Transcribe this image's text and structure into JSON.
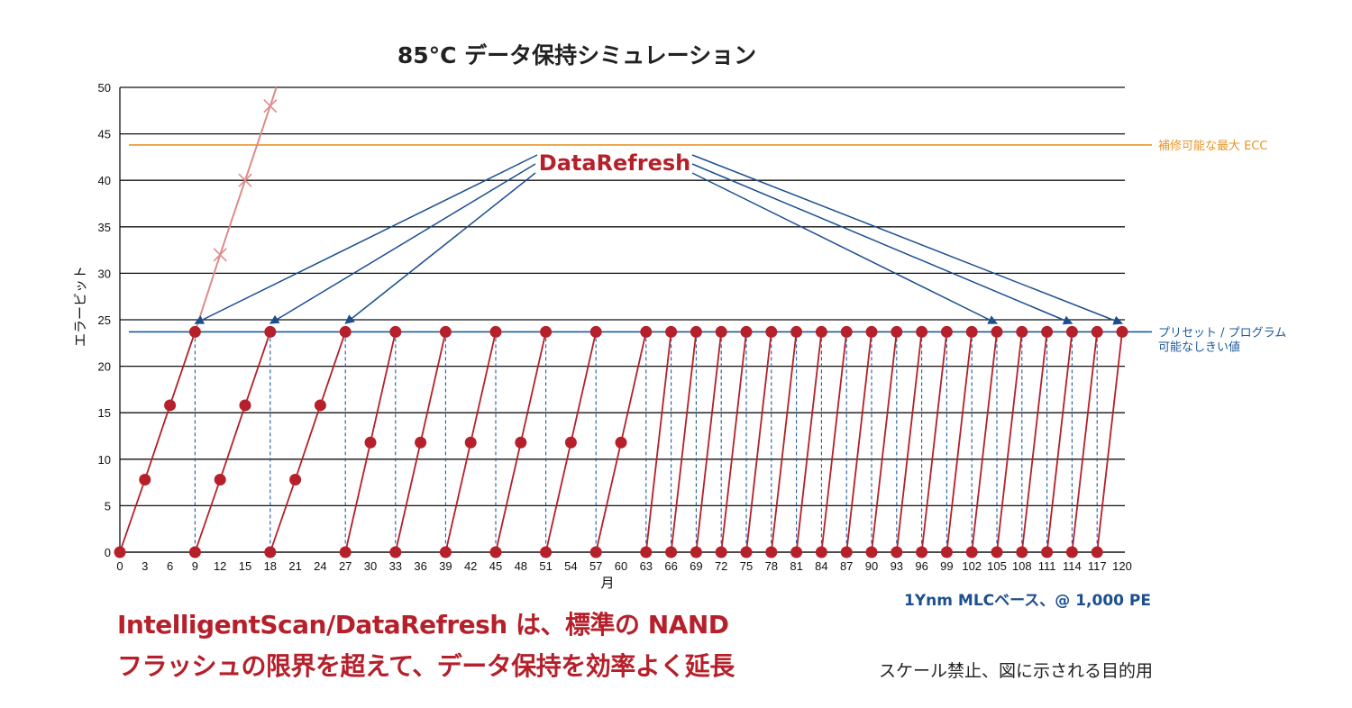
{
  "headline": {
    "line1": "IntelligentScan/DataRefresh は、標準の NAND",
    "line2": "フラッシュの限界を超えて、データ保持を効率よく延長"
  },
  "disclaimer": "スケール禁止、図に示される目的用",
  "chart_data": {
    "type": "line",
    "title": "85°C データ保持シミュレーション",
    "xlabel": "月",
    "ylabel": "エラービット",
    "xlim": [
      0,
      120
    ],
    "ylim": [
      0,
      50
    ],
    "x_ticks": [
      0,
      3,
      6,
      9,
      12,
      15,
      18,
      21,
      24,
      27,
      30,
      33,
      36,
      39,
      42,
      45,
      48,
      51,
      54,
      57,
      60,
      63,
      66,
      69,
      72,
      75,
      78,
      81,
      84,
      87,
      90,
      93,
      96,
      99,
      102,
      105,
      108,
      111,
      114,
      117,
      120
    ],
    "y_ticks": [
      0,
      5,
      10,
      15,
      20,
      25,
      30,
      35,
      40,
      45,
      50
    ],
    "grid": true,
    "refresh_label": "DataRefresh",
    "note": "1Ynm MLCベース、@ 1,000 PE",
    "thresholds": [
      {
        "name": "補修可能な最大 ECC",
        "value": 43.8,
        "color": "#e8962a"
      },
      {
        "name": "プリセット / プログラム",
        "name2": "可能なしきい値",
        "value": 23.7,
        "color": "#1c5a9a"
      }
    ],
    "series": [
      {
        "role": "baseline",
        "color": "#e08a8a",
        "points": [
          [
            9,
            23.7
          ],
          [
            12,
            32
          ],
          [
            15,
            40
          ],
          [
            18,
            48
          ]
        ]
      },
      {
        "role": "refresh",
        "color": "#b5202a",
        "points": [
          [
            0,
            0
          ],
          [
            3,
            7.8
          ],
          [
            6,
            15.8
          ],
          [
            9,
            23.7
          ]
        ]
      },
      {
        "role": "refresh",
        "color": "#b5202a",
        "points": [
          [
            9,
            0
          ],
          [
            12,
            7.8
          ],
          [
            15,
            15.8
          ],
          [
            18,
            23.7
          ]
        ]
      },
      {
        "role": "refresh",
        "color": "#b5202a",
        "points": [
          [
            18,
            0
          ],
          [
            21,
            7.8
          ],
          [
            24,
            15.8
          ],
          [
            27,
            23.7
          ]
        ]
      },
      {
        "role": "refresh",
        "color": "#b5202a",
        "points": [
          [
            27,
            0
          ],
          [
            30,
            11.8
          ],
          [
            33,
            23.7
          ]
        ]
      },
      {
        "role": "refresh",
        "color": "#b5202a",
        "points": [
          [
            33,
            0
          ],
          [
            36,
            11.8
          ],
          [
            39,
            23.7
          ]
        ]
      },
      {
        "role": "refresh",
        "color": "#b5202a",
        "points": [
          [
            39,
            0
          ],
          [
            42,
            11.8
          ],
          [
            45,
            23.7
          ]
        ]
      },
      {
        "role": "refresh",
        "color": "#b5202a",
        "points": [
          [
            45,
            0
          ],
          [
            48,
            11.8
          ],
          [
            51,
            23.7
          ]
        ]
      },
      {
        "role": "refresh",
        "color": "#b5202a",
        "points": [
          [
            51,
            0
          ],
          [
            54,
            11.8
          ],
          [
            57,
            23.7
          ]
        ]
      },
      {
        "role": "refresh",
        "color": "#b5202a",
        "points": [
          [
            57,
            0
          ],
          [
            60,
            11.8
          ],
          [
            63,
            23.7
          ]
        ]
      },
      {
        "role": "refresh",
        "color": "#b5202a",
        "points": [
          [
            63,
            0
          ],
          [
            66,
            23.7
          ]
        ]
      },
      {
        "role": "refresh",
        "color": "#b5202a",
        "points": [
          [
            66,
            0
          ],
          [
            69,
            23.7
          ]
        ]
      },
      {
        "role": "refresh",
        "color": "#b5202a",
        "points": [
          [
            69,
            0
          ],
          [
            72,
            23.7
          ]
        ]
      },
      {
        "role": "refresh",
        "color": "#b5202a",
        "points": [
          [
            72,
            0
          ],
          [
            75,
            23.7
          ]
        ]
      },
      {
        "role": "refresh",
        "color": "#b5202a",
        "points": [
          [
            75,
            0
          ],
          [
            78,
            23.7
          ]
        ]
      },
      {
        "role": "refresh",
        "color": "#b5202a",
        "points": [
          [
            78,
            0
          ],
          [
            81,
            23.7
          ]
        ]
      },
      {
        "role": "refresh",
        "color": "#b5202a",
        "points": [
          [
            81,
            0
          ],
          [
            84,
            23.7
          ]
        ]
      },
      {
        "role": "refresh",
        "color": "#b5202a",
        "points": [
          [
            84,
            0
          ],
          [
            87,
            23.7
          ]
        ]
      },
      {
        "role": "refresh",
        "color": "#b5202a",
        "points": [
          [
            87,
            0
          ],
          [
            90,
            23.7
          ]
        ]
      },
      {
        "role": "refresh",
        "color": "#b5202a",
        "points": [
          [
            90,
            0
          ],
          [
            93,
            23.7
          ]
        ]
      },
      {
        "role": "refresh",
        "color": "#b5202a",
        "points": [
          [
            93,
            0
          ],
          [
            96,
            23.7
          ]
        ]
      },
      {
        "role": "refresh",
        "color": "#b5202a",
        "points": [
          [
            96,
            0
          ],
          [
            99,
            23.7
          ]
        ]
      },
      {
        "role": "refresh",
        "color": "#b5202a",
        "points": [
          [
            99,
            0
          ],
          [
            102,
            23.7
          ]
        ]
      },
      {
        "role": "refresh",
        "color": "#b5202a",
        "points": [
          [
            102,
            0
          ],
          [
            105,
            23.7
          ]
        ]
      },
      {
        "role": "refresh",
        "color": "#b5202a",
        "points": [
          [
            105,
            0
          ],
          [
            108,
            23.7
          ]
        ]
      },
      {
        "role": "refresh",
        "color": "#b5202a",
        "points": [
          [
            108,
            0
          ],
          [
            111,
            23.7
          ]
        ]
      },
      {
        "role": "refresh",
        "color": "#b5202a",
        "points": [
          [
            111,
            0
          ],
          [
            114,
            23.7
          ]
        ]
      },
      {
        "role": "refresh",
        "color": "#b5202a",
        "points": [
          [
            114,
            0
          ],
          [
            117,
            23.7
          ]
        ]
      },
      {
        "role": "refresh",
        "color": "#b5202a",
        "points": [
          [
            117,
            0
          ],
          [
            120,
            23.7
          ]
        ]
      }
    ],
    "refresh_arrows_x": [
      9,
      18,
      27,
      105,
      114,
      120
    ]
  }
}
